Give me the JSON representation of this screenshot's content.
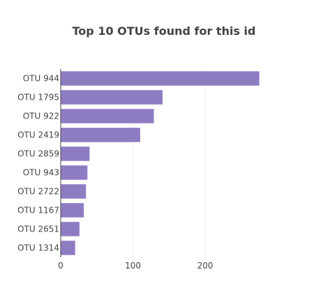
{
  "chart_data": {
    "type": "bar",
    "orientation": "horizontal",
    "title": "Top 10 OTUs found for this id",
    "xlabel": "",
    "ylabel": "",
    "categories": [
      "OTU 944",
      "OTU 1795",
      "OTU 922",
      "OTU 2419",
      "OTU 2859",
      "OTU 943",
      "OTU 2722",
      "OTU 1167",
      "OTU 2651",
      "OTU 1314"
    ],
    "values": [
      275,
      141,
      129,
      110,
      40,
      37,
      35,
      32,
      26,
      20
    ],
    "xlim": [
      0,
      283
    ],
    "xticks": [
      0,
      100,
      200
    ],
    "grid": true,
    "colors": {
      "bar": "#8e7cc3",
      "bar_outline": "#6a5aa8",
      "title": "#444444"
    }
  }
}
